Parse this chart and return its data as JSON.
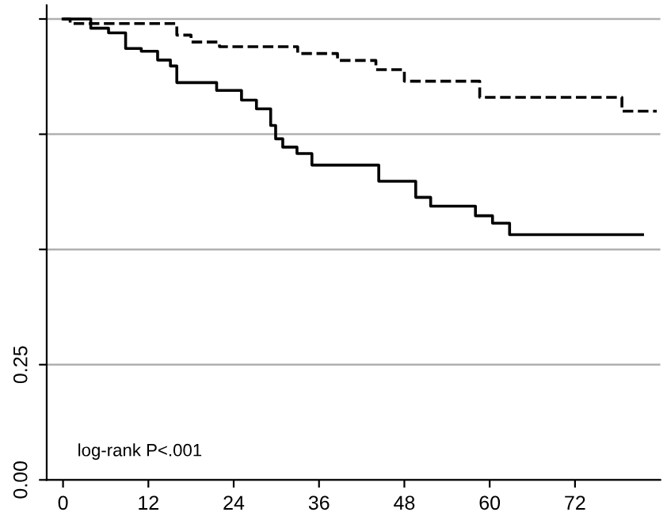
{
  "chart_data": {
    "type": "step",
    "series": [
      {
        "color": "#000000",
        "line_style": "dashed",
        "x": [
          0,
          1.0,
          16,
          18,
          22,
          33,
          38.6,
          44,
          48,
          58.6,
          78.6,
          83.5
        ],
        "values": [
          1.0,
          0.99,
          0.965,
          0.95,
          0.94,
          0.925,
          0.91,
          0.89,
          0.865,
          0.83,
          0.8,
          0.8
        ]
      },
      {
        "color": "#000000",
        "line_style": "solid",
        "x": [
          0,
          3.9,
          6.4,
          8.8,
          11,
          13.3,
          15.1,
          16,
          21.6,
          25.1,
          27.2,
          29.2,
          29.9,
          30.9,
          32.9,
          35,
          44.4,
          49.6,
          51.7,
          58,
          60.4,
          62.8,
          81.5
        ],
        "values": [
          1.0,
          0.98,
          0.97,
          0.936,
          0.93,
          0.911,
          0.898,
          0.862,
          0.845,
          0.824,
          0.805,
          0.769,
          0.74,
          0.722,
          0.708,
          0.683,
          0.648,
          0.613,
          0.594,
          0.573,
          0.557,
          0.532,
          0.532
        ]
      }
    ],
    "xlim": [
      -2.3,
      84
    ],
    "xticks": [
      0,
      12,
      24,
      36,
      48,
      60,
      72
    ],
    "ylim": [
      0,
      1.03
    ],
    "yticks": [
      {
        "value": 0,
        "label": "0.00"
      },
      {
        "value": 0.25,
        "label": "0.25"
      },
      {
        "value": 0.5,
        "label": null
      },
      {
        "value": 0.75,
        "label": null
      },
      {
        "value": 1.0,
        "label": null
      }
    ],
    "grid": "y",
    "legend": false,
    "marker": "none",
    "annotations": [
      "log-rank P<.001"
    ]
  }
}
